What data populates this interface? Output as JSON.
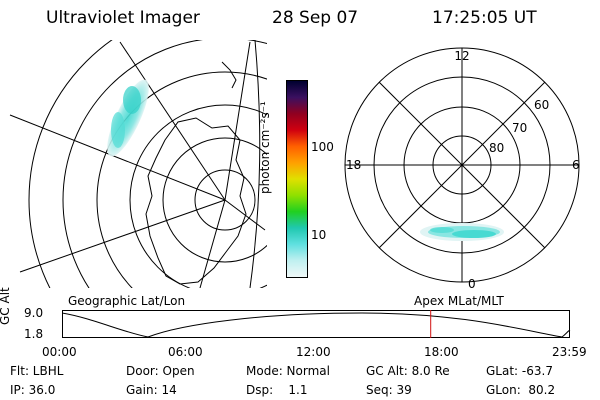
{
  "header": {
    "instrument": "Ultraviolet Imager",
    "date": "28 Sep 07",
    "time": "17:25:05 UT"
  },
  "geo_panel": {
    "label": "Geographic Lat/Lon"
  },
  "polar_panel": {
    "label": "Apex MLat/MLT",
    "mlt_labels": {
      "top": "12",
      "left": "18",
      "right": "6",
      "bottom": "0"
    },
    "lat_labels": [
      "60",
      "70",
      "80"
    ]
  },
  "colorbar": {
    "unit_label": "photon cm⁻²s⁻¹",
    "tick_labels": [
      "100",
      "10"
    ],
    "scale": "log",
    "colors": [
      "#000030",
      "#3a1060",
      "#900020",
      "#d00010",
      "#ff6000",
      "#ffa000",
      "#e0e000",
      "#90e000",
      "#20d020",
      "#20c8b0",
      "#60e0e0",
      "#c0f0f0",
      "#f0f8f8"
    ]
  },
  "timeline": {
    "ylabel": "GC Alt",
    "y_ticks": [
      "9.0",
      "1.8"
    ],
    "x_ticks": [
      "00:00",
      "06:00",
      "12:00",
      "18:00",
      "23:59"
    ],
    "marker_color": "#d01010",
    "marker_time_hours": 17.42
  },
  "footer": {
    "flt": "Flt: LBHL",
    "ip": "IP: 36.0",
    "door": "Door: Open",
    "gain": "Gain: 14",
    "mode": "Mode: Normal",
    "dsp": "Dsp:    1.1",
    "gcalt": "GC Alt: 8.0 Re",
    "seq": "Seq: 39",
    "glat": "GLat: -63.7",
    "glon": "GLon:  80.2"
  }
}
